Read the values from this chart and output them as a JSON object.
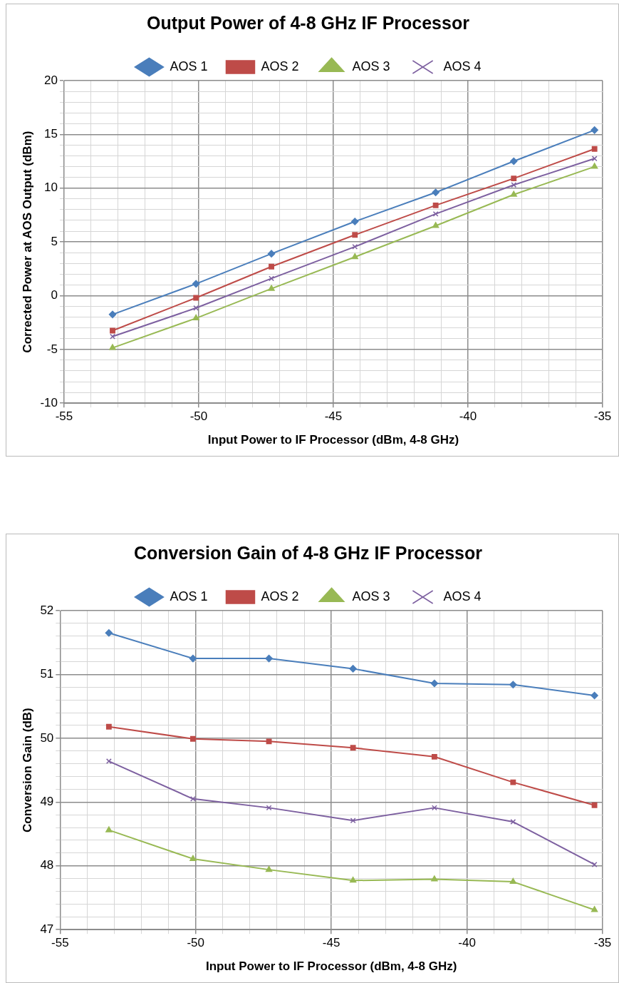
{
  "chart_data": [
    {
      "type": "line",
      "title": "Output Power of 4-8 GHz IF Processor",
      "xlabel": "Input Power to IF Processor (dBm, 4-8 GHz)",
      "ylabel": "Corrected Power at AOS Output (dBm)",
      "x": [
        -53.2,
        -50.1,
        -47.3,
        -44.2,
        -41.2,
        -38.3,
        -35.3
      ],
      "series": [
        {
          "name": "AOS 1",
          "color": "#4a7ebb",
          "marker": "diamond",
          "values": [
            -1.75,
            1.1,
            3.9,
            6.9,
            9.6,
            12.5,
            15.4
          ]
        },
        {
          "name": "AOS 2",
          "color": "#be4b48",
          "marker": "square",
          "values": [
            -3.25,
            -0.2,
            2.7,
            5.65,
            8.4,
            10.9,
            13.65
          ]
        },
        {
          "name": "AOS 3",
          "color": "#98b954",
          "marker": "triangle",
          "values": [
            -4.85,
            -2.1,
            0.65,
            3.6,
            6.5,
            9.4,
            12.0
          ]
        },
        {
          "name": "AOS 4",
          "color": "#7d60a0",
          "marker": "cross",
          "values": [
            -3.8,
            -1.15,
            1.6,
            4.55,
            7.6,
            10.3,
            12.75
          ]
        }
      ],
      "xlim": [
        -55,
        -35
      ],
      "xticks": [
        -55,
        {
          "value": -54,
          "label": null
        },
        {
          "value": -53,
          "label": null
        },
        {
          "value": -52,
          "label": null
        },
        {
          "value": -51,
          "label": null
        },
        -50,
        {
          "value": -49,
          "label": null
        },
        {
          "value": -48,
          "label": null
        },
        {
          "value": -47,
          "label": null
        },
        {
          "value": -46,
          "label": null
        },
        -45,
        {
          "value": -44,
          "label": null
        },
        {
          "value": -43,
          "label": null
        },
        {
          "value": -42,
          "label": null
        },
        {
          "value": -41,
          "label": null
        },
        -40,
        {
          "value": -39,
          "label": null
        },
        {
          "value": -38,
          "label": null
        },
        {
          "value": -37,
          "label": null
        },
        {
          "value": -36,
          "label": null
        },
        -35
      ],
      "ylim": [
        -10,
        20
      ],
      "yticks": [
        -10,
        {
          "value": -9,
          "label": null
        },
        {
          "value": -8,
          "label": null
        },
        {
          "value": -7,
          "label": null
        },
        {
          "value": -6,
          "label": null
        },
        -5,
        {
          "value": -4,
          "label": null
        },
        {
          "value": -3,
          "label": null
        },
        {
          "value": -2,
          "label": null
        },
        {
          "value": -1,
          "label": null
        },
        0,
        {
          "value": 1,
          "label": null
        },
        {
          "value": 2,
          "label": null
        },
        {
          "value": 3,
          "label": null
        },
        {
          "value": 4,
          "label": null
        },
        5,
        {
          "value": 6,
          "label": null
        },
        {
          "value": 7,
          "label": null
        },
        {
          "value": 8,
          "label": null
        },
        {
          "value": 9,
          "label": null
        },
        10,
        {
          "value": 11,
          "label": null
        },
        {
          "value": 12,
          "label": null
        },
        {
          "value": 13,
          "label": null
        },
        {
          "value": 14,
          "label": null
        },
        15,
        {
          "value": 16,
          "label": null
        },
        {
          "value": 17,
          "label": null
        },
        {
          "value": 18,
          "label": null
        },
        {
          "value": 19,
          "label": null
        },
        20
      ],
      "grid": true,
      "legend": "top",
      "line_style": "solid"
    },
    {
      "type": "line",
      "title": "Conversion Gain of 4-8 GHz IF Processor",
      "xlabel": "Input Power to IF Processor (dBm, 4-8 GHz)",
      "ylabel": "Conversion Gain (dB)",
      "x": [
        -53.2,
        -50.1,
        -47.3,
        -44.2,
        -41.2,
        -38.3,
        -35.3
      ],
      "series": [
        {
          "name": "AOS 1",
          "color": "#4a7ebb",
          "marker": "diamond",
          "values": [
            51.65,
            51.25,
            51.25,
            51.09,
            50.86,
            50.84,
            50.67
          ]
        },
        {
          "name": "AOS 2",
          "color": "#be4b48",
          "marker": "square",
          "values": [
            50.18,
            49.99,
            49.95,
            49.85,
            49.71,
            49.31,
            48.95
          ]
        },
        {
          "name": "AOS 3",
          "color": "#98b954",
          "marker": "triangle",
          "values": [
            48.56,
            48.11,
            47.94,
            47.77,
            47.79,
            47.75,
            47.31
          ]
        },
        {
          "name": "AOS 4",
          "color": "#7d60a0",
          "marker": "cross",
          "values": [
            49.64,
            49.05,
            48.91,
            48.71,
            48.91,
            48.69,
            48.02
          ]
        }
      ],
      "xlim": [
        -55,
        -35
      ],
      "xticks": [
        -55,
        {
          "value": -54,
          "label": null
        },
        {
          "value": -53,
          "label": null
        },
        {
          "value": -52,
          "label": null
        },
        {
          "value": -51,
          "label": null
        },
        -50,
        {
          "value": -49,
          "label": null
        },
        {
          "value": -48,
          "label": null
        },
        {
          "value": -47,
          "label": null
        },
        {
          "value": -46,
          "label": null
        },
        -45,
        {
          "value": -44,
          "label": null
        },
        {
          "value": -43,
          "label": null
        },
        {
          "value": -42,
          "label": null
        },
        {
          "value": -41,
          "label": null
        },
        -40,
        {
          "value": -39,
          "label": null
        },
        {
          "value": -38,
          "label": null
        },
        {
          "value": -37,
          "label": null
        },
        {
          "value": -36,
          "label": null
        },
        -35
      ],
      "ylim": [
        47,
        52
      ],
      "yticks": [
        47,
        {
          "value": 47.2,
          "label": null
        },
        {
          "value": 47.4,
          "label": null
        },
        {
          "value": 47.6,
          "label": null
        },
        {
          "value": 47.8,
          "label": null
        },
        48,
        {
          "value": 48.2,
          "label": null
        },
        {
          "value": 48.4,
          "label": null
        },
        {
          "value": 48.6,
          "label": null
        },
        {
          "value": 48.8,
          "label": null
        },
        49,
        {
          "value": 49.2,
          "label": null
        },
        {
          "value": 49.4,
          "label": null
        },
        {
          "value": 49.6,
          "label": null
        },
        {
          "value": 49.8,
          "label": null
        },
        50,
        {
          "value": 50.2,
          "label": null
        },
        {
          "value": 50.4,
          "label": null
        },
        {
          "value": 50.6,
          "label": null
        },
        {
          "value": 50.8,
          "label": null
        },
        51,
        {
          "value": 51.2,
          "label": null
        },
        {
          "value": 51.4,
          "label": null
        },
        {
          "value": 51.6,
          "label": null
        },
        {
          "value": 51.8,
          "label": null
        },
        52
      ],
      "grid": true,
      "legend": "top",
      "line_style": "solid"
    }
  ]
}
